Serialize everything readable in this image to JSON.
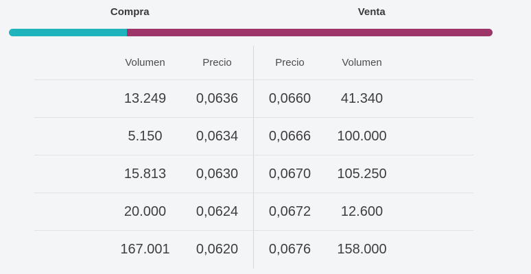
{
  "panel": {
    "buy_section_label": "Compra",
    "sell_section_label": "Venta"
  },
  "depth_bar": {
    "buy_color": "#1fb3bd",
    "sell_color": "#9d3568",
    "buy_percent": 24.4,
    "sell_percent": 75.6
  },
  "order_book": {
    "buy_headers": [
      "Volumen",
      "Precio"
    ],
    "sell_headers": [
      "Precio",
      "Volumen"
    ],
    "rows": [
      {
        "buy_volume": "13.249",
        "buy_price": "0,0636",
        "sell_price": "0,0660",
        "sell_volume": "41.340"
      },
      {
        "buy_volume": "5.150",
        "buy_price": "0,0634",
        "sell_price": "0,0666",
        "sell_volume": "100.000"
      },
      {
        "buy_volume": "15.813",
        "buy_price": "0,0630",
        "sell_price": "0,0670",
        "sell_volume": "105.250"
      },
      {
        "buy_volume": "20.000",
        "buy_price": "0,0624",
        "sell_price": "0,0672",
        "sell_volume": "12.600"
      },
      {
        "buy_volume": "167.001",
        "buy_price": "0,0620",
        "sell_price": "0,0676",
        "sell_volume": "158.000"
      }
    ]
  }
}
